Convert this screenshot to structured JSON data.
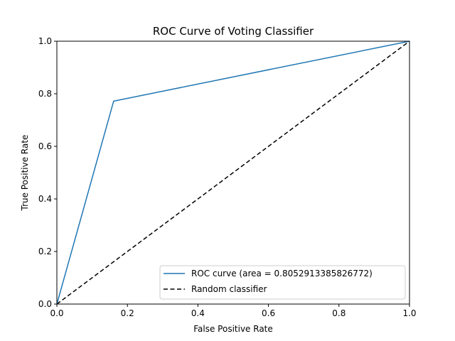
{
  "chart_data": {
    "type": "line",
    "title": "ROC Curve of Voting Classifier",
    "xlabel": "False Positive Rate",
    "ylabel": "True Positive Rate",
    "xlim": [
      0,
      1
    ],
    "ylim": [
      0,
      1
    ],
    "grid": false,
    "legend_position": "lower-right",
    "xticks": [
      0.0,
      0.2,
      0.4,
      0.6,
      0.8,
      1.0
    ],
    "xtick_labels": [
      "0.0",
      "0.2",
      "0.4",
      "0.6",
      "0.8",
      "1.0"
    ],
    "yticks": [
      0.0,
      0.2,
      0.4,
      0.6,
      0.8,
      1.0
    ],
    "ytick_labels": [
      "0.0",
      "0.2",
      "0.4",
      "0.6",
      "0.8",
      "1.0"
    ],
    "series": [
      {
        "name": "ROC curve (area = 0.8052913385826772)",
        "color": "#1f77b4",
        "style": "solid",
        "x": [
          0.0,
          0.161,
          1.0
        ],
        "y": [
          0.0,
          0.772,
          1.0
        ]
      },
      {
        "name": "Random classifier",
        "color": "#000000",
        "style": "dashed",
        "x": [
          0.0,
          1.0
        ],
        "y": [
          0.0,
          1.0
        ]
      }
    ]
  }
}
